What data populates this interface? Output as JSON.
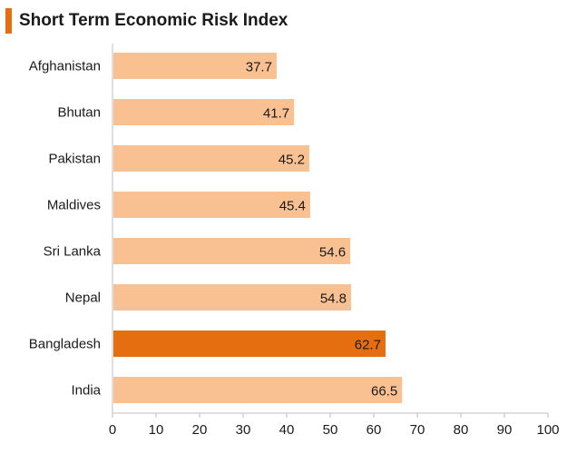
{
  "chart_data": {
    "type": "bar",
    "orientation": "horizontal",
    "title": "Short Term Economic Risk Index",
    "categories": [
      "Afghanistan",
      "Bhutan",
      "Pakistan",
      "Maldives",
      "Sri Lanka",
      "Nepal",
      "Bangladesh",
      "India"
    ],
    "values": [
      37.7,
      41.7,
      45.2,
      45.4,
      54.6,
      54.8,
      62.7,
      66.5
    ],
    "value_labels": [
      "37.7",
      "41.7",
      "45.2",
      "45.4",
      "54.6",
      "54.8",
      "62.7",
      "66.5"
    ],
    "highlight": "Bangladesh",
    "xlim": [
      0,
      100
    ],
    "xticks": [
      "0",
      "10",
      "20",
      "30",
      "40",
      "50",
      "60",
      "70",
      "80",
      "90",
      "100"
    ],
    "grid": false,
    "colors": {
      "bar": "#f9c192",
      "highlight": "#e56f10",
      "title_marker": "#e56f10",
      "axis": "#bfbfbf"
    }
  }
}
